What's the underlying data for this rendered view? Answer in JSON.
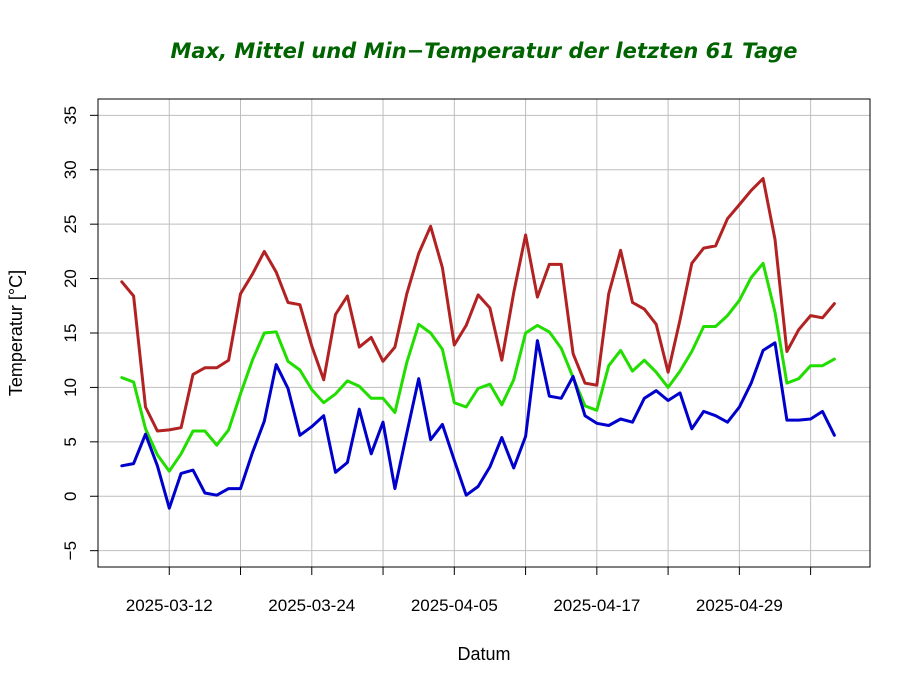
{
  "chart_data": {
    "type": "line",
    "title": "Max, Mittel und Min−Temperatur der letzten 61  Tage",
    "xlabel": "Datum",
    "ylabel": "Temperatur [°C]",
    "ylim": [
      -6.5,
      36.5
    ],
    "yticks": [
      -5,
      0,
      5,
      10,
      15,
      20,
      25,
      30,
      35
    ],
    "ytick_labels": [
      "−5",
      "0",
      "5",
      "10",
      "15",
      "20",
      "25",
      "30",
      "35"
    ],
    "xlim": [
      "2025-03-06",
      "2025-05-10"
    ],
    "xticks": [
      "2025-03-12",
      "2025-03-18",
      "2025-03-24",
      "2025-03-30",
      "2025-04-05",
      "2025-04-11",
      "2025-04-17",
      "2025-04-23",
      "2025-04-29",
      "2025-05-05"
    ],
    "xtick_labels": [
      "2025-03-12",
      "",
      "2025-03-24",
      "",
      "2025-04-05",
      "",
      "2025-04-17",
      "",
      "2025-04-29",
      ""
    ],
    "grid": true,
    "x_start": "2025-03-08",
    "series": [
      {
        "color": "#b22222",
        "values": [
          19.7,
          18.4,
          8.2,
          6.0,
          6.1,
          6.3,
          11.2,
          11.8,
          11.8,
          12.5,
          18.6,
          20.4,
          22.5,
          20.6,
          17.8,
          17.6,
          13.8,
          10.7,
          16.7,
          18.4,
          13.7,
          14.6,
          12.4,
          13.7,
          18.6,
          22.3,
          24.8,
          21.0,
          13.9,
          15.7,
          18.5,
          17.3,
          12.5,
          18.7,
          24.0,
          18.3,
          21.3,
          21.3,
          13.1,
          10.4,
          10.2,
          18.6,
          22.6,
          17.8,
          17.2,
          15.8,
          11.4,
          16.2,
          21.4,
          22.8,
          23.0,
          25.5,
          26.8,
          28.1,
          29.2,
          23.6,
          13.3,
          15.3,
          16.6,
          16.4,
          17.7
        ]
      },
      {
        "color": "#22dd00",
        "values": [
          10.9,
          10.5,
          6.2,
          3.8,
          2.3,
          3.9,
          6.0,
          6.0,
          4.7,
          6.1,
          9.4,
          12.5,
          15.0,
          15.1,
          12.4,
          11.6,
          9.8,
          8.6,
          9.4,
          10.6,
          10.1,
          9.0,
          9.0,
          7.7,
          12.3,
          15.8,
          15.0,
          13.5,
          8.6,
          8.2,
          9.9,
          10.3,
          8.4,
          10.7,
          15.0,
          15.7,
          15.1,
          13.6,
          10.9,
          8.3,
          7.9,
          12.0,
          13.4,
          11.5,
          12.5,
          11.4,
          10.0,
          11.5,
          13.3,
          15.6,
          15.6,
          16.6,
          18.0,
          20.1,
          21.4,
          16.9,
          10.4,
          10.8,
          12.0,
          12.0,
          12.6
        ]
      },
      {
        "color": "#0000cd",
        "values": [
          2.8,
          3.0,
          5.7,
          2.8,
          -1.1,
          2.1,
          2.4,
          0.3,
          0.1,
          0.7,
          0.7,
          4.0,
          6.9,
          12.1,
          9.9,
          5.6,
          6.4,
          7.4,
          2.2,
          3.1,
          8.0,
          3.9,
          6.8,
          0.7,
          5.8,
          10.8,
          5.2,
          6.6,
          3.3,
          0.1,
          0.9,
          2.7,
          5.4,
          2.6,
          5.5,
          14.3,
          9.2,
          9.0,
          11.0,
          7.4,
          6.7,
          6.5,
          7.1,
          6.8,
          9.0,
          9.7,
          8.8,
          9.5,
          6.2,
          7.8,
          7.4,
          6.8,
          8.2,
          10.4,
          13.4,
          14.1,
          7.0,
          7.0,
          7.1,
          7.8,
          5.6
        ]
      }
    ]
  }
}
